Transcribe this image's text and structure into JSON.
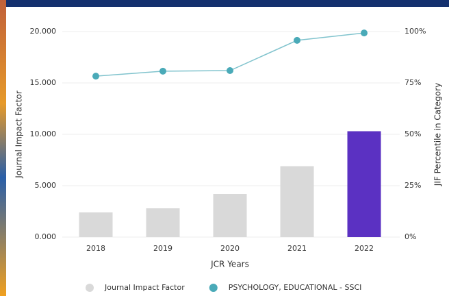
{
  "chart_data": {
    "type": "bar",
    "categories": [
      "2018",
      "2019",
      "2020",
      "2021",
      "2022"
    ],
    "xlabel": "JCR Years",
    "ylabel": "Journal Impact Factor",
    "y2label": "JIF Percentile in Category",
    "ylim": [
      0,
      20
    ],
    "yticks": [
      {
        "value": 0,
        "label": "0.000"
      },
      {
        "value": 5,
        "label": "5.000"
      },
      {
        "value": 10,
        "label": "10.000"
      },
      {
        "value": 15,
        "label": "15.000"
      },
      {
        "value": 20,
        "label": "20.000"
      }
    ],
    "y2lim": [
      0,
      100
    ],
    "y2ticks": [
      {
        "value": 0,
        "label": "0%"
      },
      {
        "value": 25,
        "label": "25%"
      },
      {
        "value": 50,
        "label": "50%"
      },
      {
        "value": 75,
        "label": "75%"
      },
      {
        "value": 100,
        "label": "100%"
      }
    ],
    "grid": true,
    "series": [
      {
        "name": "Journal Impact Factor",
        "type": "bar",
        "color": "#d9d9d9",
        "colors": [
          "#d9d9d9",
          "#d9d9d9",
          "#d9d9d9",
          "#d9d9d9",
          "#5b31c2"
        ],
        "values": [
          2.4,
          2.8,
          4.2,
          6.9,
          10.3
        ]
      },
      {
        "name": "PSYCHOLOGY, EDUCATIONAL - SSCI",
        "type": "line",
        "axis": "y2",
        "color": "#4aaab8",
        "values": [
          78.3,
          80.7,
          81,
          95.7,
          99.3
        ]
      }
    ]
  }
}
